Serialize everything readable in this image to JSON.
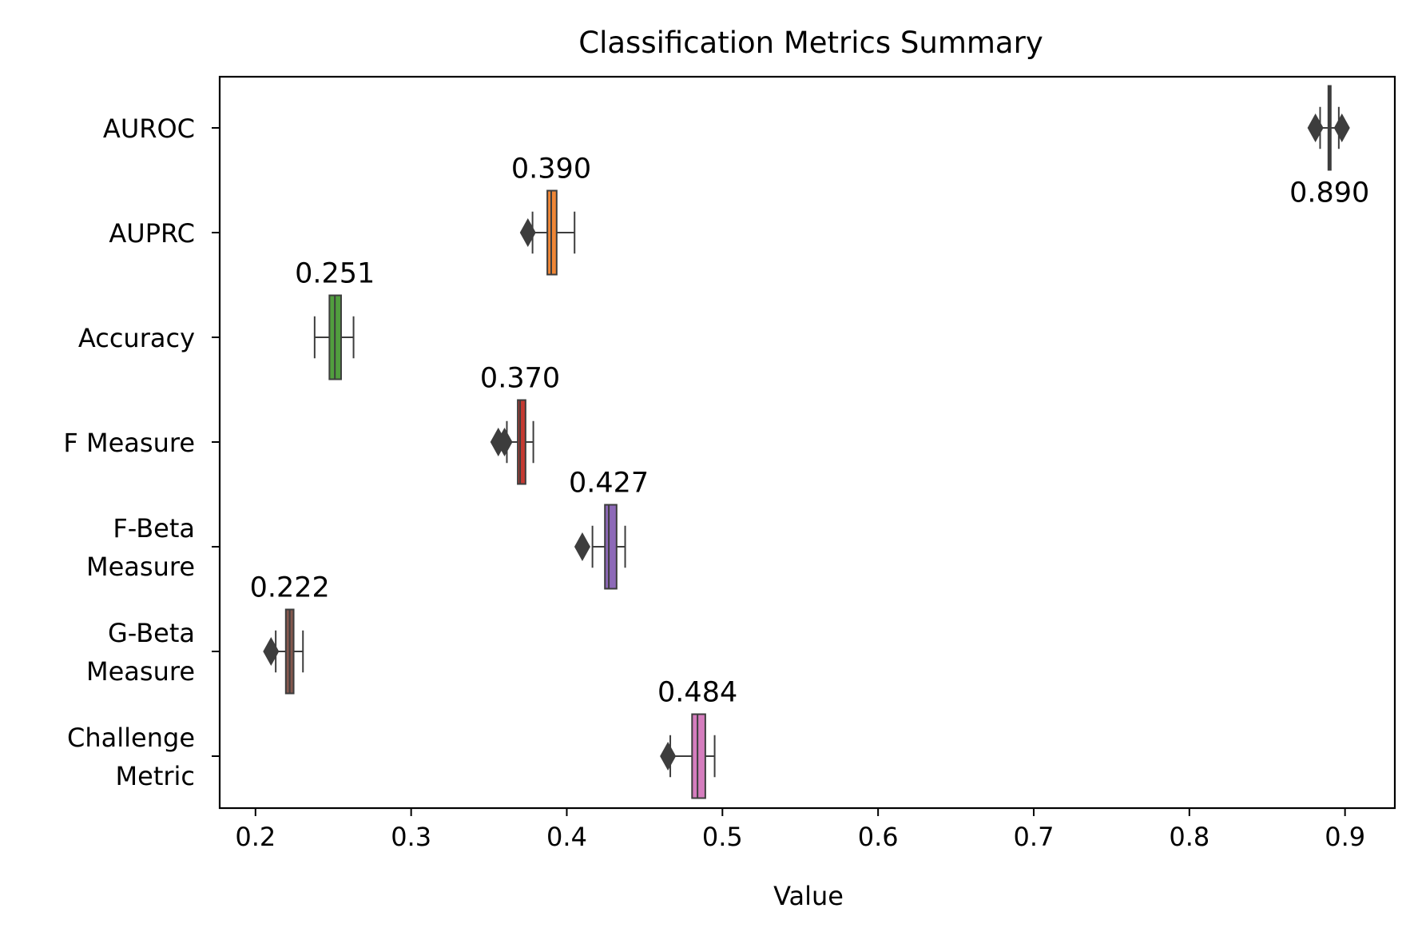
{
  "chart_data": {
    "type": "box",
    "orientation": "horizontal",
    "title": "Classification Metrics Summary",
    "xlabel": "Value",
    "ylabel": "",
    "xlim": [
      0.177,
      0.932
    ],
    "xticks": [
      0.2,
      0.3,
      0.4,
      0.5,
      0.6,
      0.7,
      0.8,
      0.9
    ],
    "xtick_labels": [
      "0.2",
      "0.3",
      "0.4",
      "0.5",
      "0.6",
      "0.7",
      "0.8",
      "0.9"
    ],
    "grid": false,
    "categories": [
      {
        "label_lines": [
          "AUROC"
        ]
      },
      {
        "label_lines": [
          "AUPRC"
        ]
      },
      {
        "label_lines": [
          "Accuracy"
        ]
      },
      {
        "label_lines": [
          "F Measure"
        ]
      },
      {
        "label_lines": [
          "F-Beta",
          "Measure"
        ]
      },
      {
        "label_lines": [
          "G-Beta",
          "Measure"
        ]
      },
      {
        "label_lines": [
          "Challenge",
          "Metric"
        ]
      }
    ],
    "boxes": [
      {
        "color": "#3b75af",
        "q1": 0.8893,
        "median": 0.89,
        "q3": 0.8905,
        "whisker_low": 0.884,
        "whisker_high": 0.896,
        "outliers": [
          0.881,
          0.898
        ],
        "annotation": "0.890",
        "annotation_position": "below"
      },
      {
        "color": "#ef8636",
        "q1": 0.3875,
        "median": 0.39,
        "q3": 0.3935,
        "whisker_low": 0.378,
        "whisker_high": 0.405,
        "outliers": [
          0.375
        ],
        "annotation": "0.390",
        "annotation_position": "above"
      },
      {
        "color": "#519e3e",
        "q1": 0.2475,
        "median": 0.251,
        "q3": 0.255,
        "whisker_low": 0.238,
        "whisker_high": 0.263,
        "outliers": [],
        "annotation": "0.251",
        "annotation_position": "above"
      },
      {
        "color": "#c53a32",
        "q1": 0.3685,
        "median": 0.37,
        "q3": 0.3735,
        "whisker_low": 0.3615,
        "whisker_high": 0.3785,
        "outliers": [
          0.356,
          0.36
        ],
        "annotation": "0.370",
        "annotation_position": "above"
      },
      {
        "color": "#8d69b8",
        "q1": 0.4245,
        "median": 0.427,
        "q3": 0.432,
        "whisker_low": 0.4165,
        "whisker_high": 0.4375,
        "outliers": [
          0.41
        ],
        "annotation": "0.427",
        "annotation_position": "above"
      },
      {
        "color": "#84584e",
        "q1": 0.2195,
        "median": 0.222,
        "q3": 0.2245,
        "whisker_low": 0.213,
        "whisker_high": 0.2305,
        "outliers": [
          0.21
        ],
        "annotation": "0.222",
        "annotation_position": "above"
      },
      {
        "color": "#d57dbe",
        "q1": 0.4805,
        "median": 0.484,
        "q3": 0.489,
        "whisker_low": 0.4665,
        "whisker_high": 0.495,
        "outliers": [
          0.465
        ],
        "annotation": "0.484",
        "annotation_position": "above"
      }
    ]
  }
}
